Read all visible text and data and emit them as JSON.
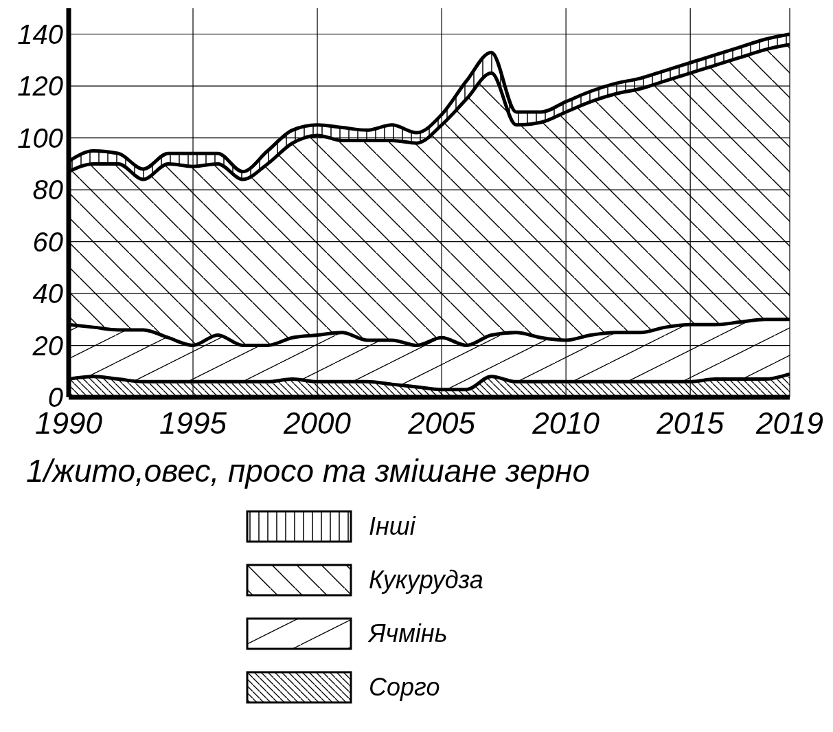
{
  "chart_data": {
    "type": "area",
    "stacked": true,
    "xlabel": "1/жито,овес, просо та змішане зерно",
    "x": [
      1990,
      1991,
      1992,
      1993,
      1994,
      1995,
      1996,
      1997,
      1998,
      1999,
      2000,
      2001,
      2002,
      2003,
      2004,
      2005,
      2006,
      2007,
      2008,
      2009,
      2010,
      2011,
      2012,
      2013,
      2014,
      2015,
      2016,
      2017,
      2018,
      2019
    ],
    "series": [
      {
        "name": "Сорго",
        "color": "#000000",
        "values": [
          7,
          8,
          7,
          6,
          6,
          6,
          6,
          6,
          6,
          7,
          6,
          6,
          6,
          5,
          4,
          3,
          3,
          8,
          6,
          6,
          6,
          6,
          6,
          6,
          6,
          6,
          7,
          7,
          7,
          9
        ]
      },
      {
        "name": "Ячмінь",
        "color": "#000000",
        "values": [
          21,
          19,
          19,
          20,
          17,
          14,
          18,
          14,
          14,
          16,
          18,
          19,
          16,
          17,
          16,
          20,
          17,
          16,
          19,
          17,
          16,
          18,
          19,
          19,
          21,
          22,
          21,
          22,
          23,
          21
        ]
      },
      {
        "name": "Кукурудза",
        "color": "#000000",
        "values": [
          59,
          63,
          64,
          58,
          67,
          69,
          66,
          64,
          70,
          75,
          77,
          74,
          77,
          77,
          78,
          82,
          95,
          101,
          80,
          83,
          88,
          90,
          92,
          94,
          95,
          97,
          100,
          102,
          104,
          106
        ]
      },
      {
        "name": "Інші",
        "color": "#000000",
        "values": [
          4,
          5,
          4,
          4,
          4,
          5,
          4,
          3,
          5,
          5,
          4,
          5,
          4,
          6,
          4,
          4,
          7,
          8,
          5,
          4,
          4,
          4,
          4,
          4,
          4,
          4,
          4,
          4,
          4,
          4
        ]
      }
    ],
    "xlim": [
      1990,
      2019
    ],
    "xticks": [
      1990,
      1995,
      2000,
      2005,
      2010,
      2015,
      2019
    ],
    "ylim": [
      0,
      150
    ],
    "yticks": [
      0,
      20,
      40,
      60,
      80,
      100,
      120,
      140
    ],
    "grid": true,
    "legend": "bottom"
  }
}
